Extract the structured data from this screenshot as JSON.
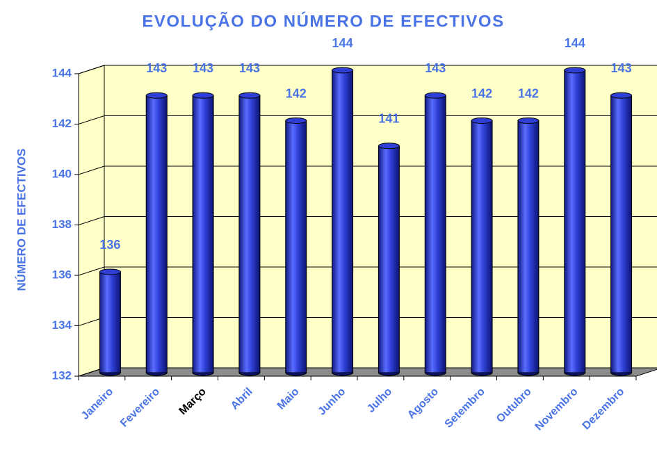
{
  "chart_data": {
    "type": "bar3d",
    "title": "EVOLUÇÃO DO NÚMERO DE EFECTIVOS",
    "y_label": "NÚMERO DE EFECTIVOS",
    "categories": [
      "Janeiro",
      "Fevereiro",
      "Março",
      "Abril",
      "Maio",
      "Junho",
      "Julho",
      "Agosto",
      "Setembro",
      "Outubro",
      "Novembro",
      "Dezembro"
    ],
    "values": [
      136,
      143,
      143,
      143,
      142,
      144,
      141,
      143,
      142,
      142,
      144,
      143
    ],
    "color": "#2f3fd6",
    "text_color": "#4a74e6",
    "category_label_colors": [
      "#4a74e6",
      "#4a74e6",
      "#000000",
      "#4a74e6",
      "#4a74e6",
      "#4a74e6",
      "#4a74e6",
      "#4a74e6",
      "#4a74e6",
      "#4a74e6",
      "#4a74e6",
      "#4a74e6"
    ],
    "wall_color": "#ffffc8",
    "floor_color": "#8c8c8c",
    "ylim": [
      132,
      144
    ],
    "yticks": [
      132,
      134,
      136,
      138,
      140,
      142,
      144
    ],
    "grid": true
  }
}
